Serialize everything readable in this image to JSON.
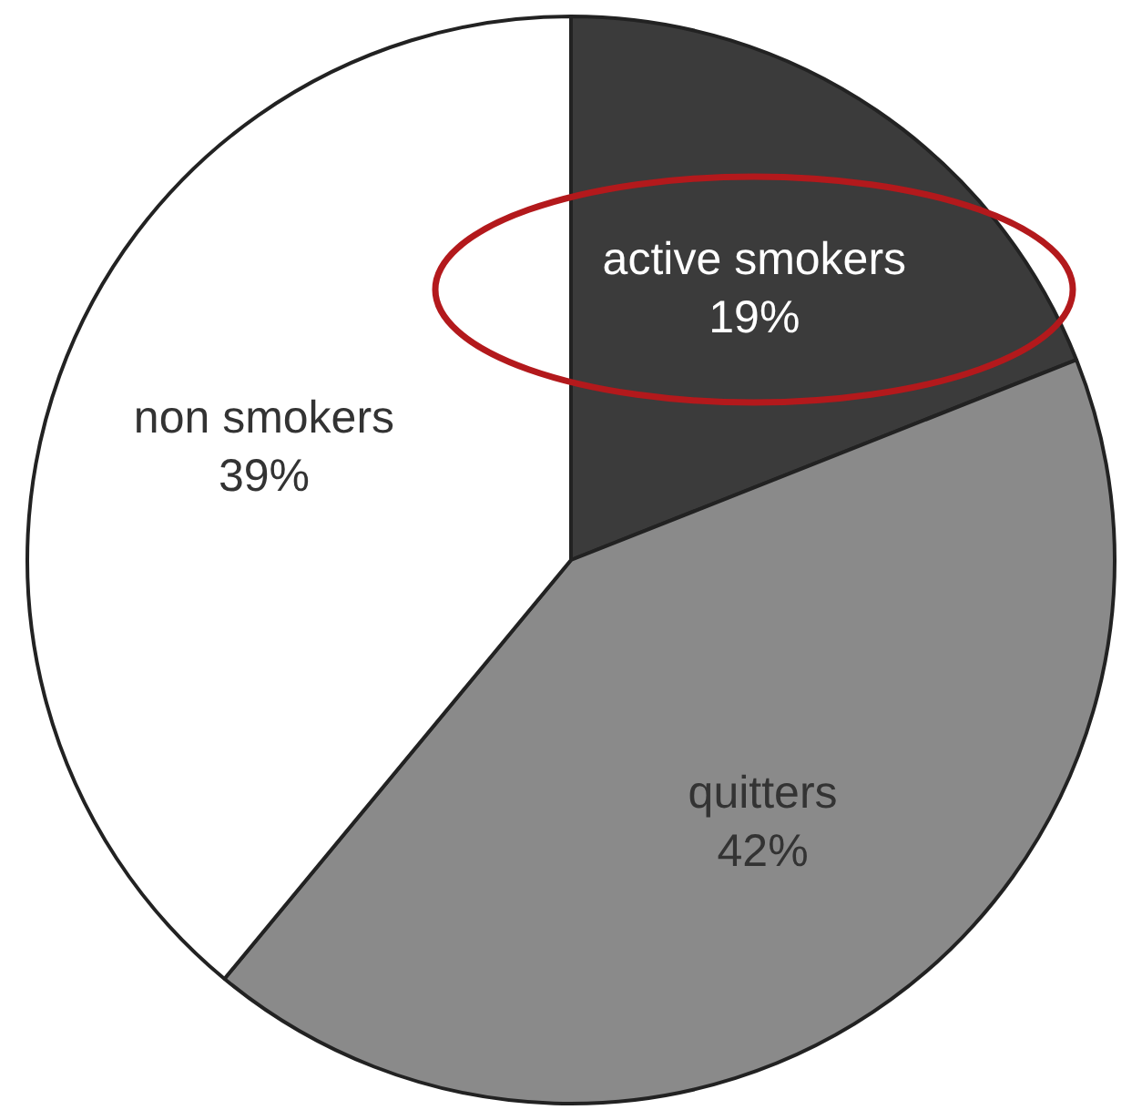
{
  "chart_data": {
    "type": "pie",
    "categories": [
      "active smokers",
      "quitters",
      "non smokers"
    ],
    "values": [
      19,
      42,
      39
    ],
    "colors": [
      "#3b3b3b",
      "#8a8a8a",
      "#ffffff"
    ],
    "value_labels": [
      "19%",
      "42%",
      "39%"
    ],
    "legend": false
  }
}
